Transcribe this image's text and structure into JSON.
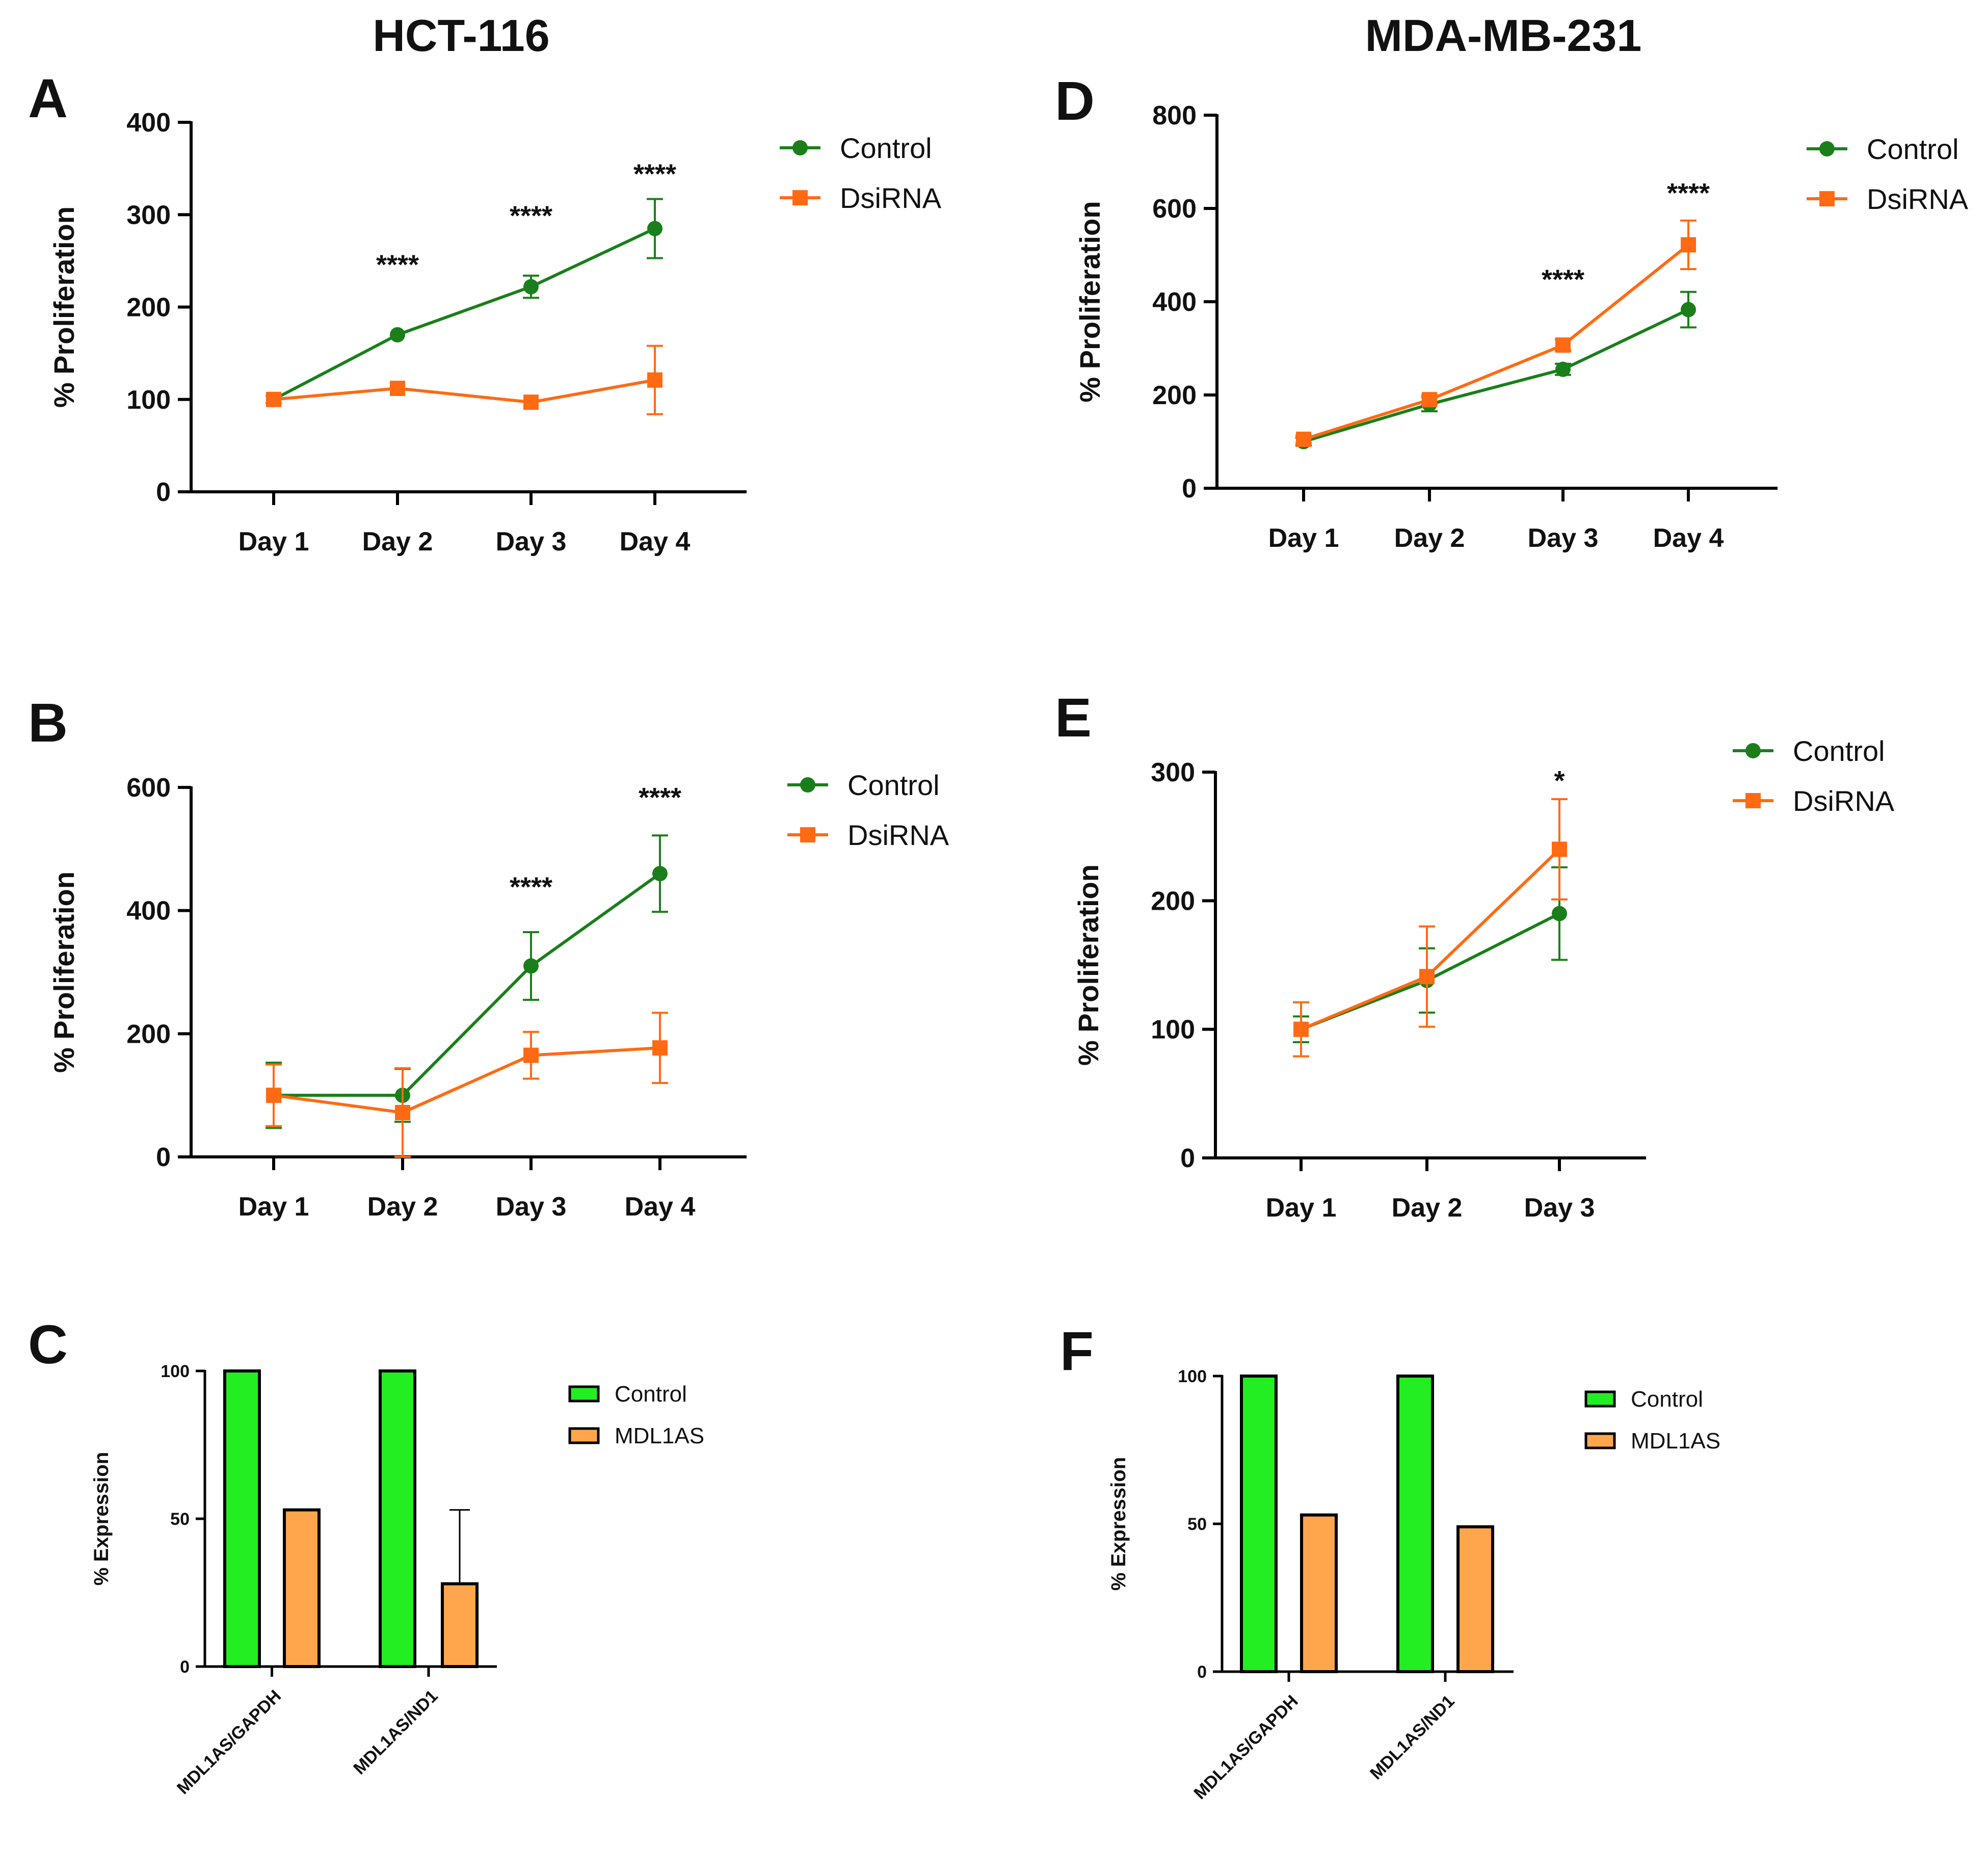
{
  "column_titles": [
    "HCT-116",
    "MDA-MB-231"
  ],
  "colors": {
    "control_line": "#1a7f1a",
    "dsirna_line": "#ff6a13",
    "control_bar": "#22ee22",
    "mdl1as_bar": "#ffa64d",
    "axis": "#000000"
  },
  "chart_data": [
    {
      "panel": "A",
      "type": "line",
      "column": "HCT-116",
      "categories": [
        "Day 1",
        "Day 2",
        "Day 3",
        "Day 4"
      ],
      "ylabel": "% Proliferation",
      "ylim": [
        0,
        400
      ],
      "yticks": [
        0,
        100,
        200,
        300,
        400
      ],
      "legend": "top-right",
      "series": [
        {
          "name": "Control",
          "marker": "circle",
          "values": [
            100,
            170,
            222,
            285
          ],
          "errors": [
            0,
            0,
            12,
            32
          ]
        },
        {
          "name": "DsiRNA",
          "marker": "square",
          "values": [
            100,
            112,
            97,
            121
          ],
          "errors": [
            4,
            0,
            0,
            37
          ]
        }
      ],
      "annotations": [
        {
          "category": "Day 2",
          "value": 247,
          "text": "****"
        },
        {
          "category": "Day 3",
          "value": 300,
          "text": "****"
        },
        {
          "category": "Day 4",
          "value": 345,
          "text": "****"
        }
      ]
    },
    {
      "panel": "B",
      "type": "line",
      "column": "HCT-116",
      "categories": [
        "Day 1",
        "Day 2",
        "Day 3",
        "Day 4"
      ],
      "ylabel": "% Proliferation",
      "ylim": [
        0,
        600
      ],
      "yticks": [
        0,
        200,
        400,
        600
      ],
      "legend": "top-right",
      "series": [
        {
          "name": "Control",
          "marker": "circle",
          "values": [
            100,
            100,
            310,
            460
          ],
          "errors": [
            53,
            43,
            55,
            62
          ]
        },
        {
          "name": "DsiRNA",
          "marker": "square",
          "values": [
            100,
            72,
            165,
            177
          ],
          "errors": [
            50,
            72,
            38,
            57
          ]
        }
      ],
      "annotations": [
        {
          "category": "Day 3",
          "value": 440,
          "text": "****"
        },
        {
          "category": "Day 4",
          "value": 585,
          "text": "****"
        }
      ]
    },
    {
      "panel": "C",
      "type": "bar",
      "column": "HCT-116",
      "categories": [
        "MDL1AS/GAPDH",
        "MDL1AS/ND1"
      ],
      "ylabel": "% Expression",
      "ylim": [
        0,
        100
      ],
      "yticks": [
        0,
        50,
        100
      ],
      "legend": "top-right",
      "series": [
        {
          "name": "Control",
          "values": [
            100,
            100
          ],
          "errors": [
            0,
            0
          ]
        },
        {
          "name": "MDL1AS",
          "values": [
            53,
            28
          ],
          "errors": [
            0,
            25
          ]
        }
      ]
    },
    {
      "panel": "D",
      "type": "line",
      "column": "MDA-MB-231",
      "categories": [
        "Day 1",
        "Day 2",
        "Day 3",
        "Day 4"
      ],
      "ylabel": "% Proliferation",
      "ylim": [
        0,
        800
      ],
      "yticks": [
        0,
        200,
        400,
        600,
        800
      ],
      "legend": "top-right",
      "series": [
        {
          "name": "Control",
          "marker": "circle",
          "values": [
            100,
            180,
            255,
            383
          ],
          "errors": [
            8,
            15,
            12,
            38
          ]
        },
        {
          "name": "DsiRNA",
          "marker": "square",
          "values": [
            105,
            190,
            307,
            522
          ],
          "errors": [
            8,
            10,
            12,
            52
          ]
        }
      ],
      "annotations": [
        {
          "category": "Day 3",
          "value": 450,
          "text": "****"
        },
        {
          "category": "Day 4",
          "value": 635,
          "text": "****"
        }
      ]
    },
    {
      "panel": "E",
      "type": "line",
      "column": "MDA-MB-231",
      "categories": [
        "Day 1",
        "Day 2",
        "Day 3"
      ],
      "ylabel": "% Proliferation",
      "ylim": [
        0,
        300
      ],
      "yticks": [
        0,
        100,
        200,
        300
      ],
      "legend": "top-right",
      "series": [
        {
          "name": "Control",
          "marker": "circle",
          "values": [
            100,
            138,
            190
          ],
          "errors": [
            10,
            25,
            36
          ]
        },
        {
          "name": "DsiRNA",
          "marker": "square",
          "values": [
            100,
            141,
            240
          ],
          "errors": [
            21,
            39,
            39
          ]
        }
      ],
      "annotations": [
        {
          "category": "Day 3",
          "value": 294,
          "text": "*"
        }
      ]
    },
    {
      "panel": "F",
      "type": "bar",
      "column": "MDA-MB-231",
      "categories": [
        "MDL1AS/GAPDH",
        "MDL1AS/ND1"
      ],
      "ylabel": "% Expression",
      "ylim": [
        0,
        100
      ],
      "yticks": [
        0,
        50,
        100
      ],
      "legend": "top-right",
      "series": [
        {
          "name": "Control",
          "values": [
            100,
            100
          ],
          "errors": [
            0,
            0
          ]
        },
        {
          "name": "MDL1AS",
          "values": [
            53,
            49
          ],
          "errors": [
            0,
            0
          ]
        }
      ]
    }
  ]
}
